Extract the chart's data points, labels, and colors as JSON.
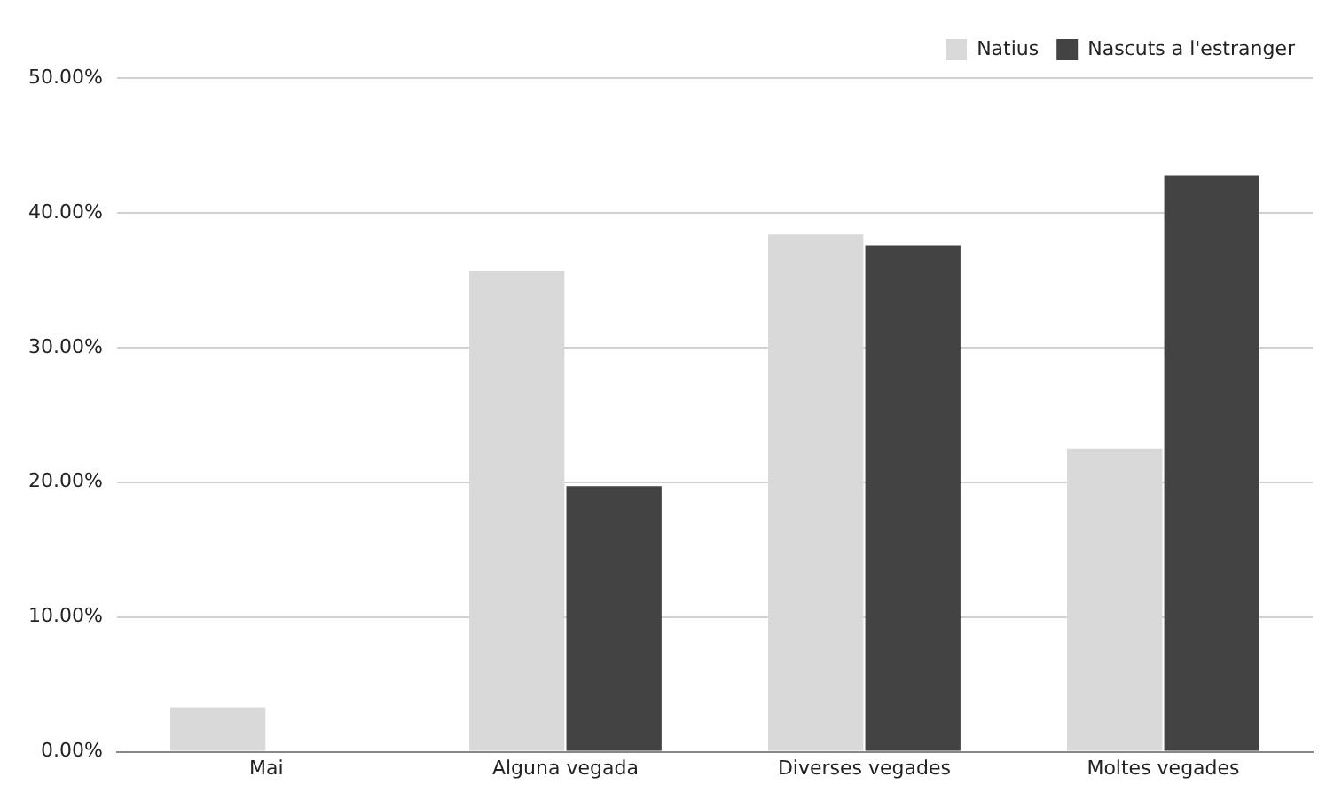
{
  "chart_data": {
    "type": "bar",
    "categories": [
      "Mai",
      "Alguna vegada",
      "Diverses vegades",
      "Moltes vegades"
    ],
    "series": [
      {
        "name": "Natius",
        "color": "#d9d9d9",
        "values": [
          3.3,
          35.7,
          38.4,
          22.5
        ]
      },
      {
        "name": "Nascuts a l'estranger",
        "color": "#434343",
        "values": [
          0,
          19.7,
          37.6,
          42.8
        ]
      }
    ],
    "ylim": [
      0,
      50
    ],
    "yticks": [
      {
        "value": 0,
        "label": "0.00%"
      },
      {
        "value": 10,
        "label": "10.00%"
      },
      {
        "value": 20,
        "label": "20.00%"
      },
      {
        "value": 30,
        "label": "30.00%"
      },
      {
        "value": 40,
        "label": "40.00%"
      },
      {
        "value": 50,
        "label": "50.00%"
      }
    ],
    "grid": "y",
    "legend": "top right"
  }
}
